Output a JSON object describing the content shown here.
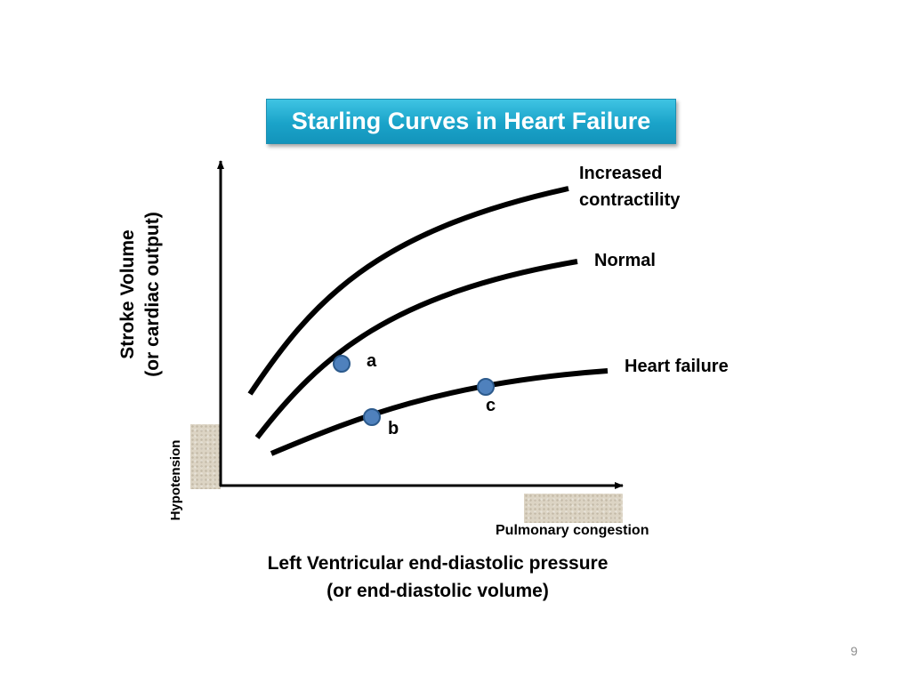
{
  "title": "Starling Curves in Heart Failure",
  "axes": {
    "x_label_line1": "Left Ventricular end-diastolic pressure",
    "x_label_line2": "(or end-diastolic volume)",
    "y_label_line1": "Stroke Volume",
    "y_label_line2": "(or cardiac output)"
  },
  "curves": {
    "increased_line1": "Increased",
    "increased_line2": "contractility",
    "normal": "Normal",
    "heart_failure": "Heart failure"
  },
  "points": {
    "a": "a",
    "b": "b",
    "c": "c"
  },
  "zones": {
    "hypotension": "Hypotension",
    "pulmonary_congestion": "Pulmonary congestion"
  },
  "colors": {
    "title_bg": "#1aa3c9",
    "point_fill": "#4f81bd",
    "curve": "#000000",
    "zone_fill": "#dcd4c4"
  },
  "page_number": "9"
}
